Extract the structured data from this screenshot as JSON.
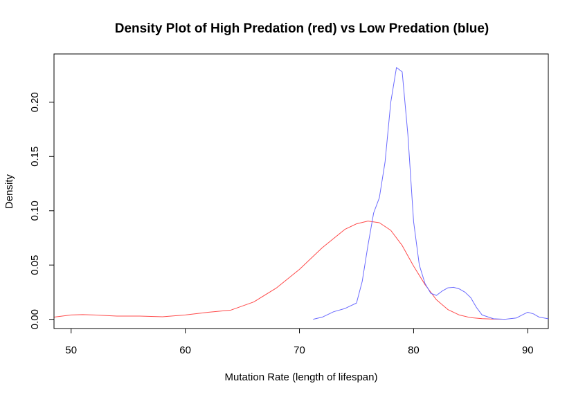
{
  "chart_data": {
    "type": "line",
    "title": "Density Plot of High Predation (red) vs Low Predation (blue)",
    "xlabel": "Mutation Rate (length of lifespan)",
    "ylabel": "Density",
    "xlim": [
      48.5,
      91.8
    ],
    "ylim": [
      -0.0085,
      0.2445
    ],
    "x_ticks": [
      "50",
      "60",
      "70",
      "80",
      "90"
    ],
    "y_ticks": [
      "0.00",
      "0.05",
      "0.10",
      "0.15",
      "0.20"
    ],
    "grid": false,
    "series": [
      {
        "color": "#ff4a4a",
        "x": [
          48.5,
          50,
          51,
          52,
          54,
          56,
          58,
          60,
          62,
          64,
          66,
          68,
          70,
          72,
          74,
          75,
          76,
          77,
          78,
          79,
          80,
          81,
          82,
          83,
          84,
          85,
          86,
          87,
          88
        ],
        "y": [
          0.002,
          0.004,
          0.0043,
          0.004,
          0.003,
          0.003,
          0.0023,
          0.004,
          0.0065,
          0.0085,
          0.016,
          0.029,
          0.046,
          0.066,
          0.083,
          0.088,
          0.0905,
          0.089,
          0.082,
          0.068,
          0.049,
          0.032,
          0.018,
          0.009,
          0.004,
          0.0015,
          0.0006,
          0.0002,
          0.0001
        ]
      },
      {
        "color": "#6a6aff",
        "x": [
          71.2,
          72,
          73,
          74,
          75,
          75.5,
          76,
          76.5,
          77,
          77.5,
          78,
          78.5,
          79,
          79.5,
          80,
          80.5,
          81,
          81.5,
          82,
          82.5,
          83,
          83.5,
          84,
          84.5,
          85,
          85.5,
          86,
          87,
          88,
          89,
          89.5,
          90,
          90.5,
          91,
          91.8
        ],
        "y": [
          0.0,
          0.002,
          0.007,
          0.01,
          0.015,
          0.035,
          0.068,
          0.098,
          0.112,
          0.145,
          0.2,
          0.232,
          0.228,
          0.17,
          0.09,
          0.05,
          0.033,
          0.024,
          0.022,
          0.026,
          0.029,
          0.0295,
          0.028,
          0.025,
          0.02,
          0.011,
          0.004,
          0.0005,
          0.0,
          0.0012,
          0.004,
          0.0065,
          0.005,
          0.002,
          0.0005
        ]
      }
    ]
  }
}
